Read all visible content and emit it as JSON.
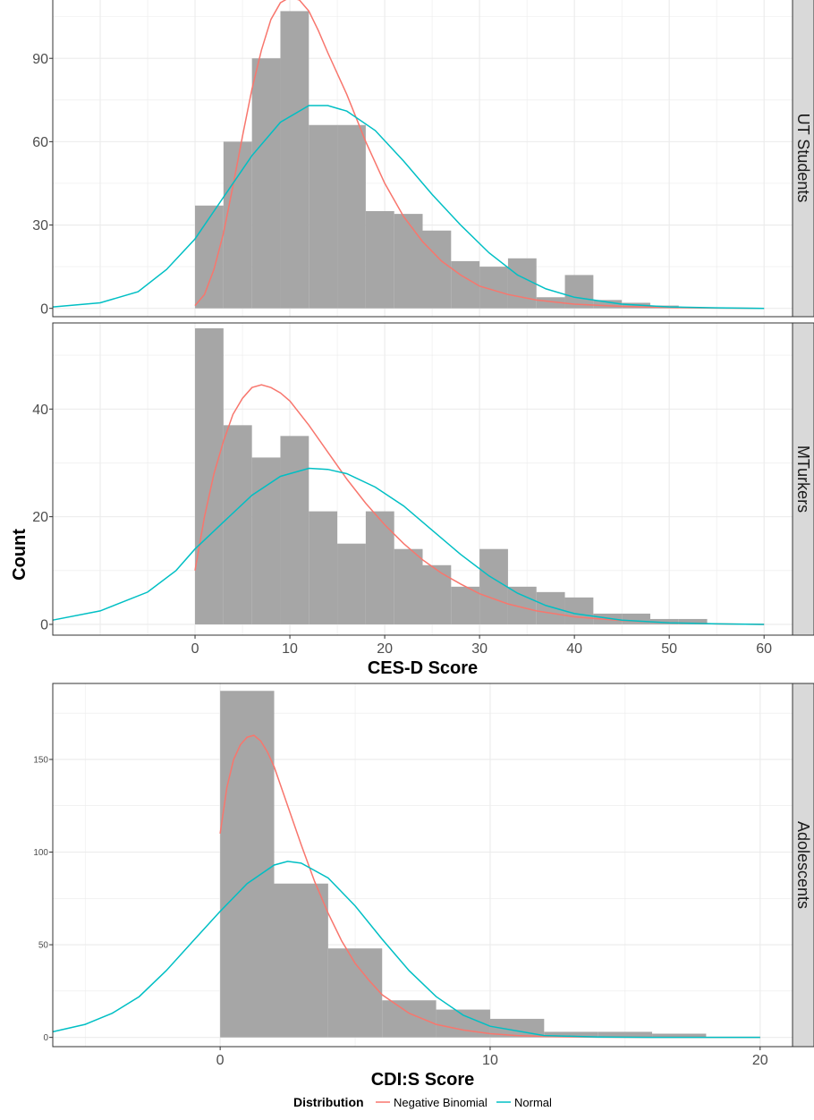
{
  "colors": {
    "negative_binomial": "#F8766D",
    "normal": "#00BFC4",
    "bars": "#a6a6a6",
    "strip": "#d9d9d9",
    "grid": "#ebebeb"
  },
  "y_axis_title": "Count",
  "legend": {
    "title": "Distribution",
    "items": [
      {
        "label": "Negative Binomial",
        "color": "#F8766D"
      },
      {
        "label": "Normal",
        "color": "#00BFC4"
      }
    ],
    "placement": "bottom"
  },
  "chart_data": [
    {
      "type": "histogram",
      "panel": "UT Students",
      "xlim": [
        -15,
        63
      ],
      "ylim": [
        -3,
        111
      ],
      "yticks": [
        0,
        30,
        60,
        90
      ],
      "xticks": [],
      "xlabel": "",
      "bin_width": 3,
      "bins": [
        {
          "x": 0,
          "count": 37
        },
        {
          "x": 3,
          "count": 60
        },
        {
          "x": 6,
          "count": 90
        },
        {
          "x": 9,
          "count": 107
        },
        {
          "x": 12,
          "count": 66
        },
        {
          "x": 15,
          "count": 66
        },
        {
          "x": 18,
          "count": 35
        },
        {
          "x": 21,
          "count": 34
        },
        {
          "x": 24,
          "count": 28
        },
        {
          "x": 27,
          "count": 17
        },
        {
          "x": 30,
          "count": 15
        },
        {
          "x": 33,
          "count": 18
        },
        {
          "x": 36,
          "count": 4
        },
        {
          "x": 39,
          "count": 12
        },
        {
          "x": 42,
          "count": 3
        },
        {
          "x": 45,
          "count": 2
        },
        {
          "x": 48,
          "count": 1
        }
      ],
      "series": [
        {
          "name": "Negative Binomial",
          "x": [
            0,
            1,
            2,
            3,
            4,
            5,
            6,
            7,
            8,
            9,
            10,
            11,
            12,
            13,
            14,
            16,
            18,
            20,
            22,
            24,
            26,
            28,
            30,
            33,
            36,
            40,
            45,
            50,
            55,
            60
          ],
          "y": [
            1,
            5,
            14,
            27,
            44,
            62,
            79,
            93,
            104,
            110,
            112,
            111,
            107,
            100,
            92,
            77,
            60,
            45,
            33,
            24,
            17,
            12,
            8,
            5,
            3,
            1.5,
            0.7,
            0.3,
            0.1,
            0
          ]
        },
        {
          "name": "Normal",
          "x": [
            -15,
            -10,
            -6,
            -3,
            0,
            3,
            6,
            9,
            12,
            14,
            16,
            19,
            22,
            25,
            28,
            31,
            34,
            37,
            40,
            45,
            50,
            55,
            60
          ],
          "y": [
            0.5,
            2,
            6,
            14,
            25,
            40,
            55,
            67,
            73,
            73,
            71,
            64,
            53,
            41,
            30,
            20,
            12,
            7,
            4,
            1.5,
            0.5,
            0.2,
            0
          ]
        }
      ]
    },
    {
      "type": "histogram",
      "panel": "MTurkers",
      "xlim": [
        -15,
        63
      ],
      "ylim": [
        -2,
        56
      ],
      "yticks": [
        0,
        20,
        40
      ],
      "xticks": [
        0,
        10,
        20,
        30,
        40,
        50,
        60
      ],
      "xlabel": "CES-D Score",
      "bin_width": 3,
      "bins": [
        {
          "x": 0,
          "count": 55
        },
        {
          "x": 3,
          "count": 37
        },
        {
          "x": 6,
          "count": 31
        },
        {
          "x": 9,
          "count": 35
        },
        {
          "x": 12,
          "count": 21
        },
        {
          "x": 15,
          "count": 15
        },
        {
          "x": 18,
          "count": 21
        },
        {
          "x": 21,
          "count": 14
        },
        {
          "x": 24,
          "count": 11
        },
        {
          "x": 27,
          "count": 7
        },
        {
          "x": 30,
          "count": 14
        },
        {
          "x": 33,
          "count": 7
        },
        {
          "x": 36,
          "count": 6
        },
        {
          "x": 39,
          "count": 5
        },
        {
          "x": 42,
          "count": 2
        },
        {
          "x": 45,
          "count": 2
        },
        {
          "x": 48,
          "count": 1
        },
        {
          "x": 51,
          "count": 1
        }
      ],
      "series": [
        {
          "name": "Negative Binomial",
          "x": [
            0,
            1,
            2,
            3,
            4,
            5,
            6,
            7,
            8,
            9,
            10,
            12,
            14,
            16,
            18,
            20,
            22,
            24,
            26,
            28,
            30,
            33,
            36,
            40,
            45,
            50,
            55,
            60
          ],
          "y": [
            10,
            20,
            28,
            34,
            39,
            42,
            44,
            44.5,
            44,
            43,
            41.5,
            37,
            32,
            27,
            22.5,
            18.5,
            15,
            12,
            9.5,
            7.5,
            5.7,
            3.8,
            2.5,
            1.4,
            0.7,
            0.3,
            0.1,
            0
          ]
        },
        {
          "name": "Normal",
          "x": [
            -15,
            -10,
            -5,
            -2,
            0,
            3,
            6,
            9,
            12,
            14,
            16,
            19,
            22,
            25,
            28,
            31,
            34,
            37,
            40,
            45,
            50,
            55,
            60
          ],
          "y": [
            0.8,
            2.5,
            6,
            10,
            14,
            19,
            24,
            27.5,
            29,
            28.8,
            28,
            25.5,
            22,
            17.5,
            13,
            9,
            5.8,
            3.5,
            2,
            0.8,
            0.3,
            0.1,
            0
          ]
        }
      ]
    },
    {
      "type": "histogram",
      "panel": "Adolescents",
      "xlim": [
        -6.2,
        21.2
      ],
      "ylim": [
        -5,
        191
      ],
      "yticks": [
        0,
        50,
        100,
        150
      ],
      "xticks": [
        0,
        10,
        20
      ],
      "xlabel": "CDI:S Score",
      "bin_width": 2,
      "bins": [
        {
          "x": 0,
          "count": 187
        },
        {
          "x": 2,
          "count": 83
        },
        {
          "x": 4,
          "count": 48
        },
        {
          "x": 6,
          "count": 20
        },
        {
          "x": 8,
          "count": 15
        },
        {
          "x": 10,
          "count": 10
        },
        {
          "x": 12,
          "count": 3
        },
        {
          "x": 14,
          "count": 3
        },
        {
          "x": 16,
          "count": 2
        }
      ],
      "series": [
        {
          "name": "Negative Binomial",
          "x": [
            0,
            0.25,
            0.5,
            0.75,
            1,
            1.25,
            1.5,
            1.75,
            2,
            2.5,
            3,
            3.5,
            4,
            4.5,
            5,
            5.5,
            6,
            7,
            8,
            9,
            10,
            11,
            12,
            14,
            16,
            18,
            20
          ],
          "y": [
            110,
            135,
            150,
            158,
            162,
            163,
            160,
            154,
            146,
            125,
            104,
            84,
            67,
            52,
            40,
            31,
            23,
            13,
            7,
            4,
            2,
            1,
            0.5,
            0.1,
            0,
            0,
            0
          ]
        },
        {
          "name": "Normal",
          "x": [
            -6.2,
            -5,
            -4,
            -3,
            -2,
            -1,
            0,
            1,
            2,
            2.5,
            3,
            4,
            5,
            6,
            7,
            8,
            9,
            10,
            12,
            14,
            16,
            18,
            20
          ],
          "y": [
            3,
            7,
            13,
            22,
            36,
            52,
            68,
            83,
            93,
            95,
            94,
            86,
            71,
            53,
            36,
            22,
            12,
            6,
            1,
            0.2,
            0,
            0,
            0
          ]
        }
      ]
    }
  ]
}
